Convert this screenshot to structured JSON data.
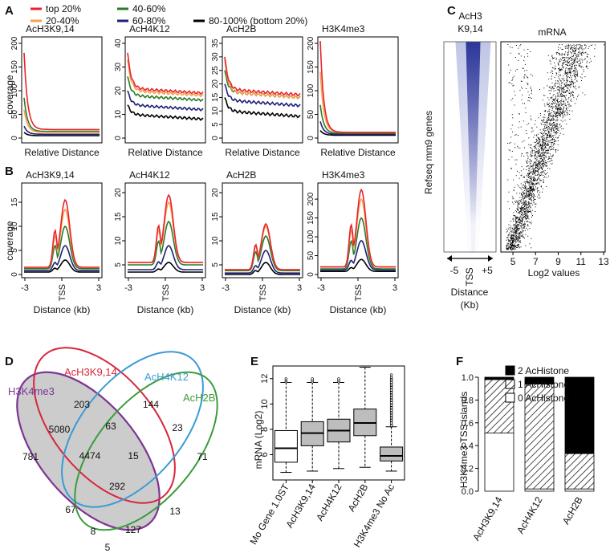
{
  "panels": {
    "A": "A",
    "B": "B",
    "C": "C",
    "D": "D",
    "E": "E",
    "F": "F"
  },
  "colors": {
    "top20": "#e8232b",
    "p20_40": "#f6a04d",
    "p40_60": "#2a7a28",
    "p60_80": "#1f1f7a",
    "p80_100": "#000000"
  },
  "legend": [
    {
      "label": "top 20%",
      "color": "#e8232b"
    },
    {
      "label": "40-60%",
      "color": "#2a7a28"
    },
    {
      "label": "20-40%",
      "color": "#f6a04d"
    },
    {
      "label": "60-80%",
      "color": "#1f1f7a"
    },
    {
      "label": "80-100% (bottom 20%)",
      "color": "#000000"
    }
  ],
  "panelA": {
    "ylabel": "coverage",
    "xlabel": "Relative Distance",
    "charts": [
      {
        "title": "AcH3K9,14",
        "yticks": [
          "0",
          "50",
          "100",
          "150",
          "200"
        ]
      },
      {
        "title": "AcH4K12",
        "yticks": [
          "0",
          "10",
          "20",
          "30",
          "40"
        ]
      },
      {
        "title": "AcH2B",
        "yticks": [
          "0",
          "5",
          "10",
          "15",
          "20",
          "25",
          "30",
          "35"
        ]
      },
      {
        "title": "H3K4me3",
        "yticks": [
          "0",
          "50",
          "100",
          "150",
          "200"
        ]
      }
    ]
  },
  "panelB": {
    "ylabel": "coverage",
    "xlabel": "Distance (kb)",
    "xticks": [
      "-3",
      "TSS",
      "3"
    ],
    "charts": [
      {
        "title": "AcH3K9,14",
        "yticks": [
          "0",
          "5",
          "10",
          "15"
        ]
      },
      {
        "title": "AcH4K12",
        "yticks": [
          "5",
          "10",
          "15",
          "20"
        ]
      },
      {
        "title": "AcH2B",
        "yticks": [
          "5",
          "10",
          "15",
          "20"
        ]
      },
      {
        "title": "H3K4me3",
        "yticks": [
          "0",
          "50",
          "100",
          "150",
          "200"
        ]
      }
    ]
  },
  "panelC": {
    "heatmap_title_line1": "AcH3",
    "heatmap_title_line2": "K9,14",
    "mrna_title": "mRNA",
    "ylabel": "Refseq mm9 genes",
    "heat_xticks": [
      "-5",
      "TSS",
      "+5"
    ],
    "heat_xlabel_line1": "Distance",
    "heat_xlabel_line2": "(Kb)",
    "scatter_xticks": [
      "5",
      "7",
      "9",
      "11",
      "13"
    ],
    "scatter_xlabel": "Log2 values"
  },
  "panelD": {
    "sets": [
      "H3K4me3",
      "AcH3K9,14",
      "AcH4K12",
      "AcH2B"
    ],
    "set_colors": [
      "#7d3494",
      "#d8263b",
      "#3a9bd5",
      "#3c9b3c"
    ],
    "counts": [
      "203",
      "144",
      "5080",
      "63",
      "23",
      "781",
      "4474",
      "15",
      "71",
      "292",
      "67",
      "13",
      "8",
      "127",
      "5"
    ]
  },
  "chart_data": [
    {
      "type": "box",
      "title": "E",
      "ylabel": "mRNA (Log2)",
      "ylim": [
        4,
        13
      ],
      "yticks": [
        "6",
        "8",
        "10",
        "12"
      ],
      "categories": [
        "Mo Gene 1.0ST",
        "AcH3K9,14",
        "AcH4K12",
        "AcH2B",
        "H3K4me3 No Ac"
      ],
      "fills": [
        "#ffffff",
        "#bdbdbd",
        "#bdbdbd",
        "#bdbdbd",
        "#bdbdbd"
      ],
      "boxes": [
        {
          "min": 4.6,
          "q1": 5.4,
          "median": 6.5,
          "q3": 7.9,
          "max": 11.7
        },
        {
          "min": 4.7,
          "q1": 6.7,
          "median": 7.7,
          "q3": 8.6,
          "max": 11.7
        },
        {
          "min": 4.9,
          "q1": 7.0,
          "median": 7.9,
          "q3": 8.8,
          "max": 11.7
        },
        {
          "min": 5.0,
          "q1": 7.5,
          "median": 8.5,
          "q3": 9.6,
          "max": 12.9
        },
        {
          "min": 4.7,
          "q1": 5.5,
          "median": 5.9,
          "q3": 6.6,
          "max": 8.2
        }
      ]
    },
    {
      "type": "stacked_bar",
      "title": "F",
      "ylabel": "H3K4me3 TSS islands",
      "ylim": [
        0,
        1.0
      ],
      "yticks": [
        "0.0",
        "0.2",
        "0.4",
        "0.6",
        "0.8",
        "1.0"
      ],
      "categories": [
        "AcH3K9,14",
        "AcH4K12",
        "AcH2B"
      ],
      "series": [
        {
          "name": "0 AcHistone",
          "values": [
            0.51,
            0.02,
            0.02
          ]
        },
        {
          "name": "1 AcHistone",
          "values": [
            0.47,
            0.92,
            0.31
          ]
        },
        {
          "name": "2 AcHistone",
          "values": [
            0.02,
            0.06,
            0.67
          ]
        }
      ],
      "legend": [
        "2 AcHistone",
        "1 AcHistone",
        "0 AcHistone"
      ]
    }
  ]
}
